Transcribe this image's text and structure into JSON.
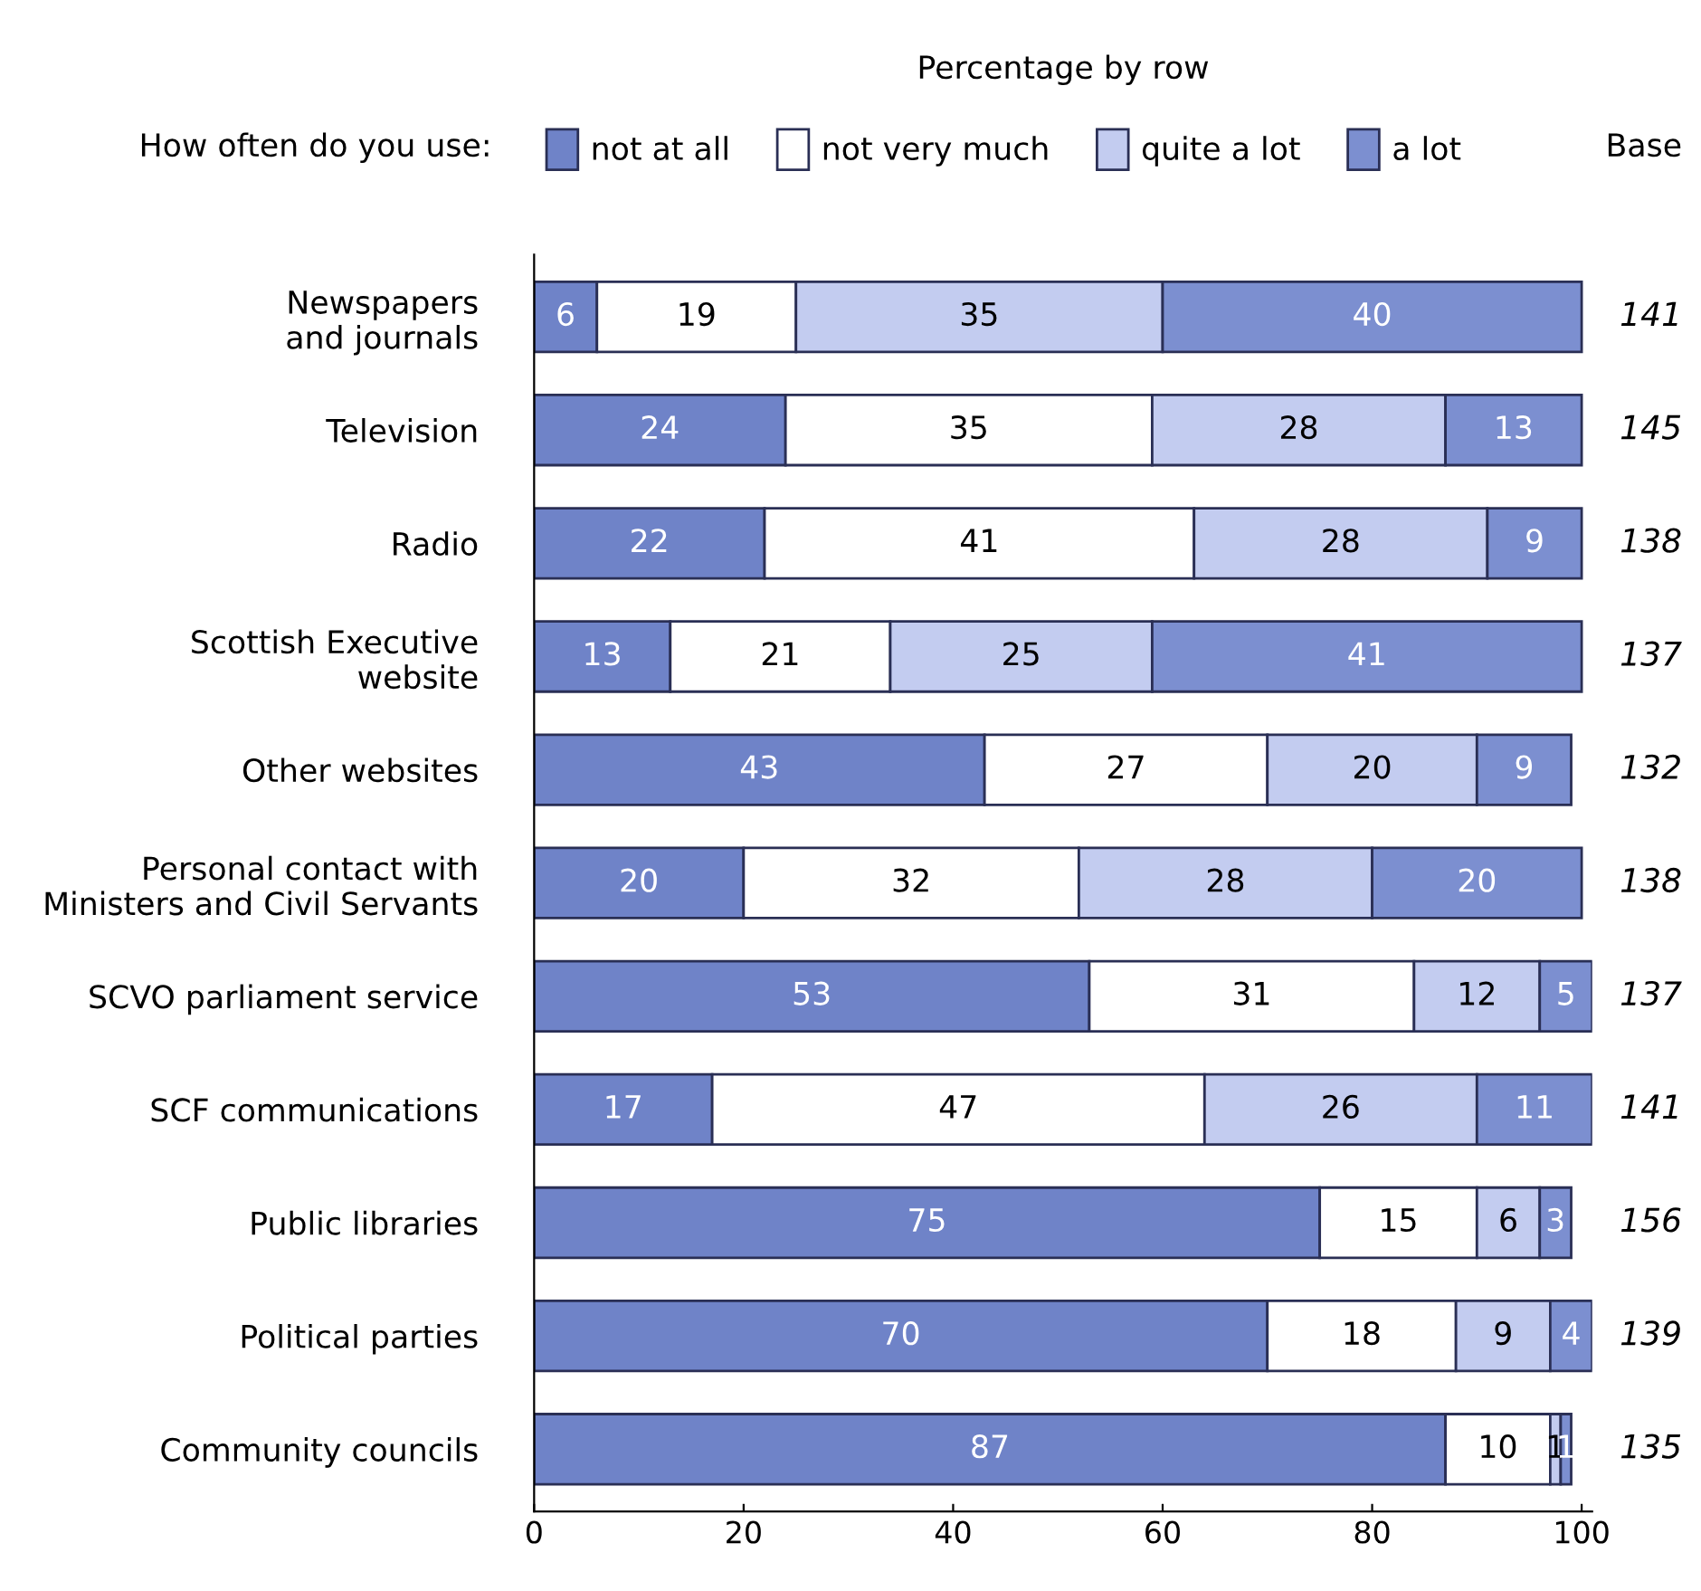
{
  "chart_data": {
    "type": "bar",
    "orientation": "horizontal",
    "stacked": true,
    "title": "Percentage by row",
    "legend_title": "How often do you use:",
    "legend": "top",
    "data_labels": true,
    "grid": false,
    "categories": [
      "Newspapers\nand journals",
      "Television",
      "Radio",
      "Scottish Executive\nwebsite",
      "Other websites",
      "Personal contact with\nMinisters and Civil Servants",
      "SCVO parliament service",
      "SCF communications",
      "Public libraries",
      "Political parties",
      "Community councils"
    ],
    "series": [
      {
        "name": "not at all",
        "color": "#6f83c8",
        "values": [
          6,
          24,
          22,
          13,
          43,
          20,
          53,
          17,
          75,
          70,
          87
        ]
      },
      {
        "name": "not very much",
        "color": "#ffffff",
        "values": [
          19,
          35,
          41,
          21,
          27,
          32,
          31,
          47,
          15,
          18,
          10
        ]
      },
      {
        "name": "quite a lot",
        "color": "#c3ccf0",
        "values": [
          35,
          28,
          28,
          25,
          20,
          28,
          12,
          26,
          6,
          9,
          1
        ]
      },
      {
        "name": "a lot",
        "color": "#7c8fd0",
        "values": [
          40,
          13,
          9,
          41,
          9,
          20,
          5,
          11,
          3,
          4,
          1
        ]
      }
    ],
    "xlim": [
      0,
      101
    ],
    "xticks": [
      0,
      20,
      40,
      60,
      80,
      100
    ],
    "annotations": [
      "Base",
      "141",
      "145",
      "138",
      "137",
      "132",
      "138",
      "137",
      "141",
      "156",
      "139",
      "135"
    ]
  }
}
